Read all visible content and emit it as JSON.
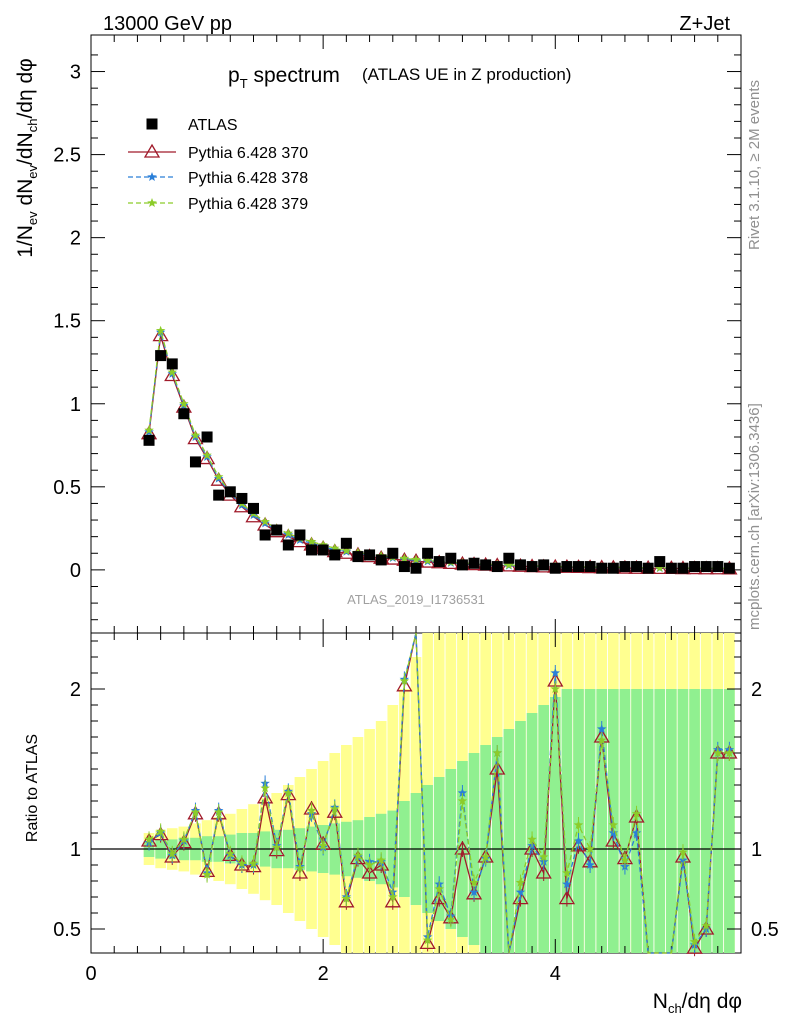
{
  "header": {
    "left": "13000 GeV pp",
    "right": "Z+Jet"
  },
  "title": {
    "main": "p",
    "main_sub": "T",
    "main_rest": " spectrum",
    "paren": "(ATLAS UE in Z production)"
  },
  "side_labels": {
    "rivet": "Rivet 3.1.10, ≥ 2M events",
    "mcplots": "mcplots.cern.ch [arXiv:1306.3436]"
  },
  "watermark": "ATLAS_2019_I1736531",
  "colors": {
    "data": "#000000",
    "p370": "#a01a2a",
    "p378": "#2a7fd8",
    "p379": "#8ccc2a",
    "band_green": "#90f090",
    "band_yellow": "#ffff90"
  },
  "chart_data": [
    {
      "type": "line",
      "panel": "main",
      "ylabel": "1/N_ev dN_ev/dN_ch/dη dφ",
      "ylim": [
        -0.38,
        3.22
      ],
      "xlim": [
        0,
        5.6
      ],
      "yticks": [
        "0",
        "0.5",
        "1",
        "1.5",
        "2",
        "2.5",
        "3"
      ],
      "legend_position": "top-left",
      "legend": [
        "ATLAS",
        "Pythia 6.428 370",
        "Pythia 6.428 378",
        "Pythia 6.428 379"
      ],
      "x": [
        0.5,
        0.6,
        0.7,
        0.8,
        0.9,
        1.0,
        1.1,
        1.2,
        1.3,
        1.4,
        1.5,
        1.6,
        1.7,
        1.8,
        1.9,
        2.0,
        2.1,
        2.2,
        2.3,
        2.4,
        2.5,
        2.6,
        2.7,
        2.8,
        2.9,
        3.0,
        3.1,
        3.2,
        3.3,
        3.4,
        3.5,
        3.6,
        3.7,
        3.8,
        3.9,
        4.0,
        4.1,
        4.2,
        4.3,
        4.4,
        4.5,
        4.6,
        4.7,
        4.8,
        4.9,
        5.0,
        5.1,
        5.2,
        5.3,
        5.4,
        5.5
      ],
      "series": [
        {
          "name": "ATLAS",
          "marker": "square",
          "values": [
            0.78,
            1.29,
            1.24,
            0.94,
            0.65,
            0.8,
            0.45,
            0.47,
            0.43,
            0.37,
            0.21,
            0.24,
            0.15,
            0.21,
            0.12,
            0.12,
            0.09,
            0.16,
            0.08,
            0.09,
            0.06,
            0.1,
            0.02,
            0.01,
            0.1,
            0.05,
            0.07,
            0.03,
            0.04,
            0.03,
            0.02,
            0.07,
            0.03,
            0.02,
            0.03,
            0.01,
            0.02,
            0.02,
            0.02,
            0.01,
            0.01,
            0.02,
            0.02,
            0.01,
            0.05,
            0.01,
            0.01,
            0.02,
            0.02,
            0.02,
            0.01
          ]
        },
        {
          "name": "Pythia 6.428 370",
          "marker": "triangle",
          "values": [
            0.82,
            1.41,
            1.17,
            0.98,
            0.79,
            0.67,
            0.54,
            0.45,
            0.38,
            0.32,
            0.27,
            0.23,
            0.2,
            0.17,
            0.15,
            0.13,
            0.11,
            0.1,
            0.09,
            0.08,
            0.07,
            0.065,
            0.058,
            0.052,
            0.047,
            0.043,
            0.039,
            0.035,
            0.032,
            0.029,
            0.026,
            0.024,
            0.022,
            0.02,
            0.018,
            0.017,
            0.016,
            0.015,
            0.014,
            0.013,
            0.012,
            0.011,
            0.01,
            0.01,
            0.009,
            0.009,
            0.008,
            0.008,
            0.007,
            0.007,
            0.006
          ]
        },
        {
          "name": "Pythia 6.428 378",
          "marker": "star",
          "values": [
            0.83,
            1.43,
            1.18,
            0.99,
            0.8,
            0.68,
            0.55,
            0.46,
            0.39,
            0.33,
            0.28,
            0.24,
            0.21,
            0.18,
            0.16,
            0.14,
            0.12,
            0.11,
            0.1,
            0.09,
            0.08,
            0.072,
            0.064,
            0.057,
            0.051,
            0.046,
            0.042,
            0.038,
            0.034,
            0.031,
            0.028,
            0.026,
            0.024,
            0.022,
            0.02,
            0.019,
            0.018,
            0.017,
            0.016,
            0.015,
            0.014,
            0.013,
            0.012,
            0.011,
            0.011,
            0.01,
            0.01,
            0.009,
            0.009,
            0.008,
            0.008
          ]
        },
        {
          "name": "Pythia 6.428 379",
          "marker": "star",
          "values": [
            0.84,
            1.44,
            1.19,
            1.0,
            0.81,
            0.69,
            0.56,
            0.47,
            0.4,
            0.34,
            0.29,
            0.25,
            0.22,
            0.19,
            0.17,
            0.15,
            0.13,
            0.115,
            0.105,
            0.095,
            0.085,
            0.077,
            0.069,
            0.062,
            0.056,
            0.051,
            0.046,
            0.042,
            0.038,
            0.035,
            0.032,
            0.029,
            0.027,
            0.025,
            0.023,
            0.021,
            0.02,
            0.019,
            0.018,
            0.017,
            0.016,
            0.015,
            0.014,
            0.013,
            0.012,
            0.012,
            0.011,
            0.011,
            0.01,
            0.01,
            0.009
          ]
        }
      ]
    },
    {
      "type": "line",
      "panel": "ratio",
      "ylabel": "Ratio to ATLAS",
      "xlabel": "N_ch/dη dφ",
      "ylim": [
        0.35,
        2.35
      ],
      "xlim": [
        0,
        5.6
      ],
      "xticks": [
        "0",
        "2",
        "4"
      ],
      "yticks": [
        "0.5",
        "1",
        "2"
      ],
      "x": [
        0.5,
        0.6,
        0.7,
        0.8,
        0.9,
        1.0,
        1.1,
        1.2,
        1.3,
        1.4,
        1.5,
        1.6,
        1.7,
        1.8,
        1.9,
        2.0,
        2.1,
        2.2,
        2.3,
        2.4,
        2.5,
        2.6,
        2.7,
        2.8,
        2.9,
        3.0,
        3.1,
        3.2,
        3.3,
        3.4,
        3.5,
        3.6,
        3.7,
        3.8,
        3.9,
        4.0,
        4.1,
        4.2,
        4.3,
        4.4,
        4.5,
        4.6,
        4.7,
        4.8,
        4.9,
        5.0,
        5.1,
        5.2,
        5.3,
        5.4,
        5.5
      ],
      "bands": {
        "green_halfwidth": [
          0.05,
          0.06,
          0.06,
          0.07,
          0.07,
          0.08,
          0.08,
          0.09,
          0.1,
          0.1,
          0.11,
          0.12,
          0.12,
          0.13,
          0.14,
          0.15,
          0.16,
          0.17,
          0.18,
          0.2,
          0.22,
          0.24,
          0.3,
          0.35,
          0.4,
          0.45,
          0.5,
          0.55,
          0.6,
          0.65,
          0.7,
          0.75,
          0.8,
          0.85,
          0.9,
          0.95,
          1.0,
          1.0,
          1.0,
          1.0,
          1.0,
          1.0,
          1.0,
          1.0,
          1.0,
          1.0,
          1.0,
          1.0,
          1.0,
          1.0,
          1.0
        ],
        "yellow_halfwidth": [
          0.1,
          0.12,
          0.13,
          0.14,
          0.16,
          0.18,
          0.2,
          0.22,
          0.25,
          0.28,
          0.32,
          0.35,
          0.4,
          0.45,
          0.5,
          0.55,
          0.6,
          0.65,
          0.7,
          0.75,
          0.8,
          0.9,
          1.0,
          1.2,
          1.4,
          1.4,
          1.4,
          1.4,
          1.4,
          1.4,
          1.4,
          1.4,
          1.4,
          1.4,
          1.4,
          1.4,
          1.4,
          1.4,
          1.4,
          1.4,
          1.4,
          1.4,
          1.4,
          1.4,
          1.4,
          1.4,
          1.4,
          1.4,
          1.4,
          1.4,
          1.4
        ]
      },
      "series": [
        {
          "name": "Pythia 6.428 370",
          "marker": "triangle",
          "values": [
            1.05,
            1.09,
            0.95,
            1.04,
            1.22,
            0.86,
            1.22,
            0.96,
            0.9,
            0.89,
            1.32,
            0.99,
            1.34,
            0.85,
            1.25,
            1.03,
            1.23,
            0.67,
            0.94,
            0.85,
            0.9,
            0.67,
            2.02,
            2.8,
            0.41,
            0.69,
            0.57,
            1.0,
            0.72,
            0.95,
            1.5,
            0.3,
            0.69,
            1.0,
            0.85,
            2.05,
            0.69,
            1.02,
            0.92,
            1.7,
            1.05,
            0.94,
            1.2,
            0.35,
            0.3,
            0.3,
            0.95,
            0.38,
            0.5,
            1.6,
            1.6
          ]
        },
        {
          "name": "Pythia 6.428 378",
          "marker": "star",
          "values": [
            1.04,
            1.1,
            0.96,
            1.05,
            1.24,
            0.85,
            1.24,
            0.96,
            0.9,
            0.9,
            1.41,
            1.02,
            1.36,
            0.89,
            1.22,
            1.01,
            1.26,
            0.7,
            0.95,
            0.92,
            0.92,
            0.73,
            2.06,
            2.8,
            0.45,
            0.78,
            0.58,
            1.35,
            0.73,
            0.94,
            1.6,
            0.3,
            0.73,
            1.02,
            0.92,
            2.1,
            0.78,
            1.05,
            0.9,
            1.75,
            1.1,
            0.89,
            1.1,
            0.35,
            0.3,
            0.3,
            0.93,
            0.4,
            0.5,
            1.62,
            1.62
          ]
        },
        {
          "name": "Pythia 6.428 379",
          "marker": "star",
          "values": [
            1.06,
            1.11,
            0.97,
            1.06,
            1.23,
            0.84,
            1.23,
            0.97,
            0.91,
            0.91,
            1.38,
            1.01,
            1.35,
            0.88,
            1.24,
            1.02,
            1.25,
            0.69,
            0.96,
            0.9,
            0.93,
            0.7,
            2.05,
            2.8,
            0.43,
            0.75,
            0.56,
            1.3,
            0.79,
            0.95,
            1.6,
            0.3,
            0.79,
            1.06,
            0.95,
            2.0,
            0.85,
            1.15,
            1.0,
            1.68,
            1.15,
            0.93,
            1.22,
            0.35,
            0.3,
            0.3,
            0.98,
            0.42,
            0.52,
            1.6,
            1.6
          ]
        }
      ]
    }
  ]
}
